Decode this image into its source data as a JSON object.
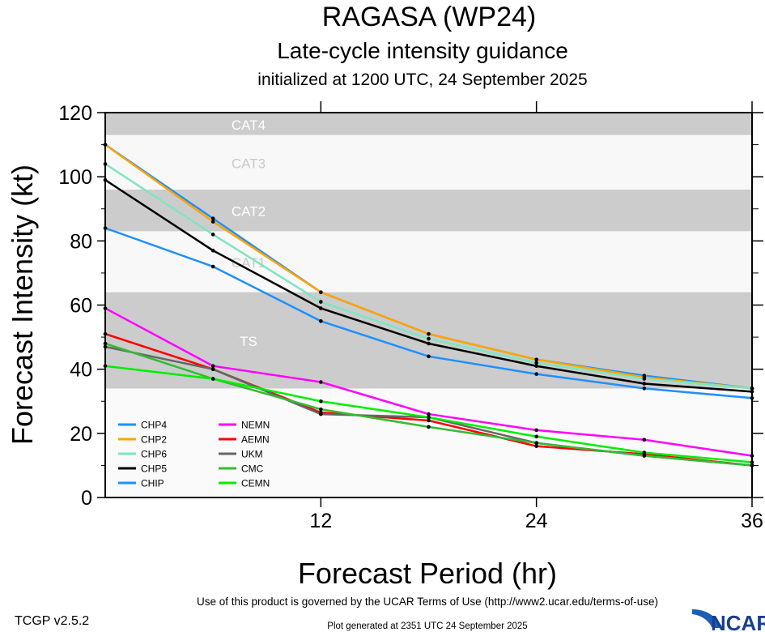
{
  "title": "RAGASA (WP24)",
  "subtitle": "Late-cycle intensity guidance",
  "init_line": "initialized at 1200 UTC, 24 September 2025",
  "footer": {
    "version": "TCGP v2.5.2",
    "terms": "Use of this product is governed by the UCAR Terms of Use (http://www2.ucar.edu/terms-of-use)",
    "generated": "Plot generated at 2351 UTC   24 September 2025",
    "logo_text": "NCAR"
  },
  "chart_data": {
    "type": "line",
    "xlabel": "Forecast Period (hr)",
    "ylabel": "Forecast Intensity (kt)",
    "xlim": [
      0,
      36
    ],
    "ylim": [
      0,
      120
    ],
    "x_ticks": [
      12,
      24,
      36
    ],
    "y_ticks": [
      0,
      20,
      40,
      60,
      80,
      100,
      120
    ],
    "grid": false,
    "legend": "none (inline labels)",
    "x": [
      0,
      6,
      12,
      18,
      24,
      30,
      36
    ],
    "bands": [
      {
        "label": "CAT4",
        "from": 113,
        "to": 120,
        "color": "#cccccc",
        "text_color": "#ffffff"
      },
      {
        "label": "CAT3",
        "from": 96,
        "to": 113,
        "color": "#f8f8f8",
        "text_color": "#c8c8c8"
      },
      {
        "label": "CAT2",
        "from": 83,
        "to": 96,
        "color": "#cccccc",
        "text_color": "#ffffff"
      },
      {
        "label": "CAT1",
        "from": 64,
        "to": 83,
        "color": "#f8f8f8",
        "text_color": "#c8c8c8"
      },
      {
        "label": "TS",
        "from": 34,
        "to": 64,
        "color": "#cccccc",
        "text_color": "#ffffff"
      }
    ],
    "series": [
      {
        "name": "CHP4",
        "color": "#1e90ff",
        "values": [
          110,
          87,
          64,
          51,
          43,
          38,
          34
        ]
      },
      {
        "name": "CHP2",
        "color": "#ffa500",
        "values": [
          110,
          86,
          64,
          51,
          43,
          37.5,
          34
        ]
      },
      {
        "name": "CHP6",
        "color": "#7fe5c0",
        "values": [
          104,
          82,
          61,
          49.5,
          42,
          37,
          34
        ]
      },
      {
        "name": "CHP5",
        "color": "#000000",
        "values": [
          99,
          77,
          59,
          48,
          41,
          35.5,
          33
        ]
      },
      {
        "name": "CHIP",
        "color": "#1e90ff",
        "values": [
          84,
          72,
          55,
          44,
          38.5,
          34,
          31
        ]
      },
      {
        "name": "NEMN",
        "color": "#ff00ff",
        "values": [
          59,
          41,
          36,
          26,
          21,
          18,
          13
        ]
      },
      {
        "name": "AEMN",
        "color": "#ff0000",
        "values": [
          51,
          40,
          26.5,
          24,
          16,
          13.5,
          10
        ]
      },
      {
        "name": "UKM",
        "color": "#666666",
        "values": [
          47,
          40,
          26,
          25,
          17,
          13,
          10
        ]
      },
      {
        "name": "CMC",
        "color": "#33bb33",
        "values": [
          48,
          37,
          27.5,
          22,
          17,
          13,
          10
        ]
      },
      {
        "name": "CEMN",
        "color": "#00ee00",
        "values": [
          41,
          37,
          30,
          25,
          19,
          14,
          11
        ]
      }
    ]
  }
}
